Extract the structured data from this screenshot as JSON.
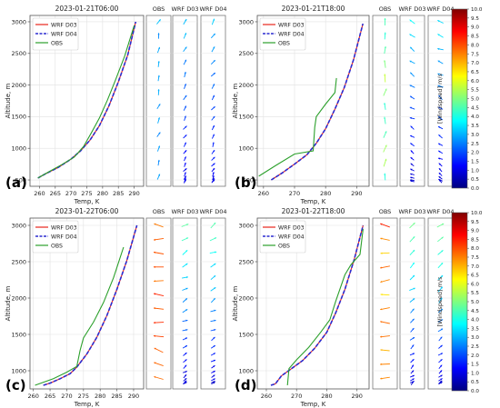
{
  "chart_data": [
    {
      "type": "line",
      "panel": "(a)",
      "title": "2023-01-21T06:00",
      "xlabel": "Temp, K",
      "ylabel": "Altitude, m",
      "xlim": [
        257,
        293
      ],
      "ylim": [
        400,
        3100
      ],
      "xticks": [
        260,
        265,
        270,
        275,
        280,
        285,
        290
      ],
      "yticks": [
        500,
        1000,
        1500,
        2000,
        2500,
        3000
      ],
      "legend": "top-left",
      "series": [
        {
          "name": "WRF D03",
          "color": "#e8251c",
          "dash": "solid",
          "x": [
            259.5,
            262,
            266,
            270,
            273,
            276,
            279,
            282,
            285,
            288,
            290.5
          ],
          "y": [
            530,
            600,
            700,
            830,
            960,
            1130,
            1360,
            1670,
            2050,
            2480,
            3000
          ]
        },
        {
          "name": "WRF D04",
          "color": "#2b2bd0",
          "dash": "dashed",
          "x": [
            259.5,
            262,
            266,
            270,
            273,
            276,
            279,
            282,
            285,
            288,
            290.5
          ],
          "y": [
            530,
            600,
            700,
            830,
            960,
            1130,
            1360,
            1670,
            2050,
            2480,
            3000
          ]
        },
        {
          "name": "OBS",
          "color": "#2ca02c",
          "dash": "solid",
          "x": [
            259.5,
            263,
            267,
            271,
            274,
            276.5,
            279,
            281.5,
            284,
            287,
            290
          ],
          "y": [
            530,
            630,
            740,
            860,
            1030,
            1250,
            1480,
            1760,
            2070,
            2460,
            2940
          ]
        }
      ],
      "wind_columns": [
        "OBS",
        "WRF D03",
        "WRF D04"
      ]
    },
    {
      "type": "line",
      "panel": "(b)",
      "title": "2023-01-21T18:00",
      "xlabel": "Temp, K",
      "ylabel": "Altitude, m",
      "xlim": [
        258,
        294
      ],
      "ylim": [
        400,
        3100
      ],
      "xticks": [
        260,
        270,
        280,
        290
      ],
      "yticks": [
        500,
        1000,
        1500,
        2000,
        2500,
        3000
      ],
      "legend": "top-left",
      "series": [
        {
          "name": "WRF D03",
          "color": "#e8251c",
          "dash": "solid",
          "x": [
            262.5,
            266,
            270,
            274,
            277,
            280,
            283,
            286,
            289,
            292
          ],
          "y": [
            500,
            610,
            750,
            900,
            1080,
            1310,
            1620,
            1960,
            2400,
            2970
          ]
        },
        {
          "name": "WRF D04",
          "color": "#2b2bd0",
          "dash": "dashed",
          "x": [
            262.5,
            266,
            270,
            274,
            277,
            280,
            283,
            286,
            289,
            292
          ],
          "y": [
            500,
            610,
            750,
            900,
            1080,
            1310,
            1620,
            1960,
            2400,
            2970
          ]
        },
        {
          "name": "OBS",
          "color": "#2ca02c",
          "dash": "solid",
          "x": [
            258.5,
            264,
            270,
            276,
            276.5,
            277,
            280,
            283,
            283.5
          ],
          "y": [
            560,
            730,
            910,
            960,
            1330,
            1500,
            1700,
            1880,
            2110
          ]
        }
      ],
      "wind_columns": [
        "OBS",
        "WRF D03",
        "WRF D04"
      ]
    },
    {
      "type": "line",
      "panel": "(c)",
      "title": "2023-01-22T06:00",
      "xlabel": "Temp, K",
      "ylabel": "Altitude, m",
      "xlim": [
        259,
        293
      ],
      "ylim": [
        750,
        3100
      ],
      "xticks": [
        260,
        265,
        270,
        275,
        280,
        285,
        290
      ],
      "yticks": [
        1000,
        1500,
        2000,
        2500,
        3000
      ],
      "legend": "top-left",
      "series": [
        {
          "name": "WRF D03",
          "color": "#e8251c",
          "dash": "solid",
          "x": [
            263,
            265,
            268,
            271,
            273,
            276,
            279,
            282,
            285,
            288,
            291
          ],
          "y": [
            800,
            830,
            890,
            960,
            1050,
            1230,
            1460,
            1760,
            2120,
            2520,
            3000
          ]
        },
        {
          "name": "WRF D04",
          "color": "#2b2bd0",
          "dash": "dashed",
          "x": [
            263,
            265,
            268,
            271,
            273,
            276,
            279,
            282,
            285,
            288,
            291
          ],
          "y": [
            800,
            830,
            890,
            960,
            1050,
            1230,
            1460,
            1760,
            2120,
            2520,
            3000
          ]
        },
        {
          "name": "OBS",
          "color": "#2ca02c",
          "dash": "solid",
          "x": [
            260.5,
            266,
            270,
            273,
            274,
            275,
            278,
            281,
            284,
            287
          ],
          "y": [
            800,
            890,
            980,
            1060,
            1280,
            1450,
            1670,
            1940,
            2280,
            2700
          ]
        }
      ],
      "wind_columns": [
        "OBS",
        "WRF D03",
        "WRF D04"
      ]
    },
    {
      "type": "line",
      "panel": "(d)",
      "title": "2023-01-22T18:00",
      "xlabel": "Temp, K",
      "ylabel": "Altitude, m",
      "xlim": [
        257,
        294
      ],
      "ylim": [
        750,
        3100
      ],
      "xticks": [
        260,
        270,
        280,
        290
      ],
      "yticks": [
        1000,
        1500,
        2000,
        2500,
        3000
      ],
      "legend": "top-left",
      "series": [
        {
          "name": "WRF D03",
          "color": "#e8251c",
          "dash": "solid",
          "x": [
            261.5,
            263,
            265,
            268,
            272,
            276,
            280,
            283,
            286,
            289,
            292
          ],
          "y": [
            800,
            820,
            930,
            1020,
            1140,
            1310,
            1530,
            1800,
            2120,
            2520,
            3000
          ]
        },
        {
          "name": "WRF D04",
          "color": "#2b2bd0",
          "dash": "dashed",
          "x": [
            261.5,
            263,
            265,
            268,
            272,
            276,
            280,
            283,
            286,
            289,
            292
          ],
          "y": [
            800,
            820,
            930,
            1020,
            1140,
            1310,
            1530,
            1800,
            2120,
            2520,
            3000
          ]
        },
        {
          "name": "OBS",
          "color": "#2ca02c",
          "dash": "solid",
          "x": [
            267,
            267.5,
            270,
            274,
            278,
            281,
            283,
            286,
            288,
            291,
            292
          ],
          "y": [
            800,
            1030,
            1150,
            1320,
            1530,
            1700,
            1960,
            2320,
            2460,
            2600,
            2950
          ]
        }
      ],
      "wind_columns": [
        "OBS",
        "WRF D03",
        "WRF D04"
      ]
    }
  ],
  "colorbar": {
    "label": "[Windspeed]",
    "unit": "m/s",
    "ticks": [
      "0.0",
      "0.5",
      "1.0",
      "1.5",
      "2.0",
      "2.5",
      "3.0",
      "3.5",
      "4.0",
      "4.5",
      "5.0",
      "5.5",
      "6.0",
      "6.5",
      "7.0",
      "7.5",
      "8.0",
      "8.5",
      "9.0",
      "9.5",
      "10.0"
    ],
    "range": [
      0,
      10
    ],
    "colormap": [
      "#00007f",
      "#0000ff",
      "#007fff",
      "#00ffff",
      "#7fff7f",
      "#ffff00",
      "#ff7f00",
      "#ff0000",
      "#7f0000"
    ]
  }
}
